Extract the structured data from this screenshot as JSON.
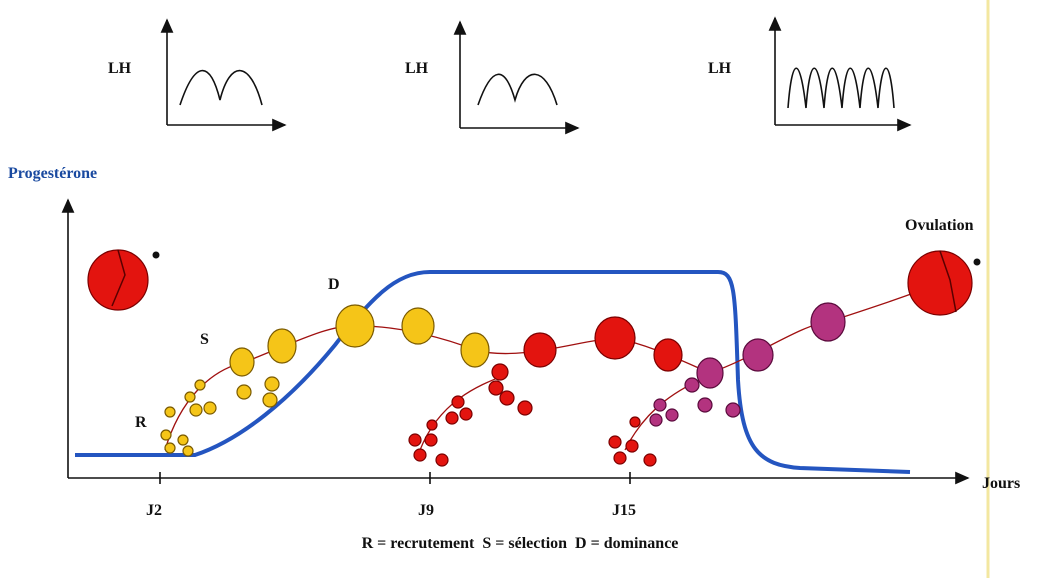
{
  "lh_plots": [
    {
      "label": "LH"
    },
    {
      "label": "LH"
    },
    {
      "label": "LH"
    }
  ],
  "progesterone_label": "Progestérone",
  "ovulation_label": "Ovulation",
  "phase_labels": {
    "r": "R",
    "s": "S",
    "d": "D"
  },
  "x_axis": {
    "label": "Jours",
    "ticks": [
      "J2",
      "J9",
      "J15"
    ]
  },
  "legend": "R = recrutement  S = sélection  D = dominance"
}
